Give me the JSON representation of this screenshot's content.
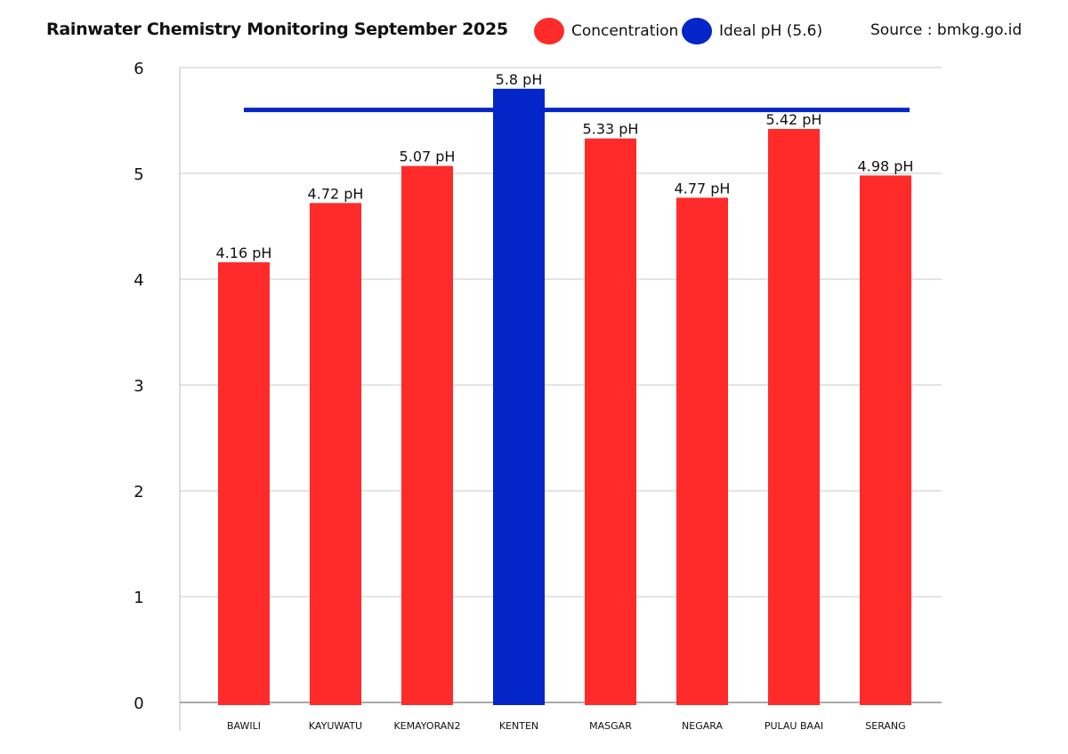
{
  "chart_data": {
    "type": "bar",
    "title": "Rainwater Chemistry Monitoring September 2025",
    "source": "Source : bmkg.go.id",
    "legend": [
      {
        "name": "Concentration",
        "color": "#ff2a2a"
      },
      {
        "name": "Ideal pH (5.6)",
        "color": "#0426c8"
      }
    ],
    "legend_placement": "top",
    "categories": [
      "BAWILI",
      "KAYUWATU",
      "KEMAYORAN2",
      "KENTEN",
      "MASGAR",
      "NEGARA",
      "PULAU BAAI",
      "SERANG"
    ],
    "values": [
      4.16,
      4.72,
      5.07,
      5.8,
      5.33,
      4.77,
      5.42,
      4.98
    ],
    "data_labels": [
      "4.16 pH",
      "4.72 pH",
      "5.07 pH",
      "5.8 pH",
      "5.33 pH",
      "4.77 pH",
      "5.42 pH",
      "4.98 pH"
    ],
    "bar_colors": [
      "#ff2a2a",
      "#ff2a2a",
      "#ff2a2a",
      "#0426c8",
      "#ff2a2a",
      "#ff2a2a",
      "#ff2a2a",
      "#ff2a2a"
    ],
    "ideal_line": 5.6,
    "ideal_line_color": "#0426c8",
    "ylim": [
      0,
      6
    ],
    "yticks": [
      "0",
      "1",
      "2",
      "3",
      "4",
      "5",
      "6"
    ],
    "grid": true,
    "xlabel": "",
    "ylabel": ""
  }
}
